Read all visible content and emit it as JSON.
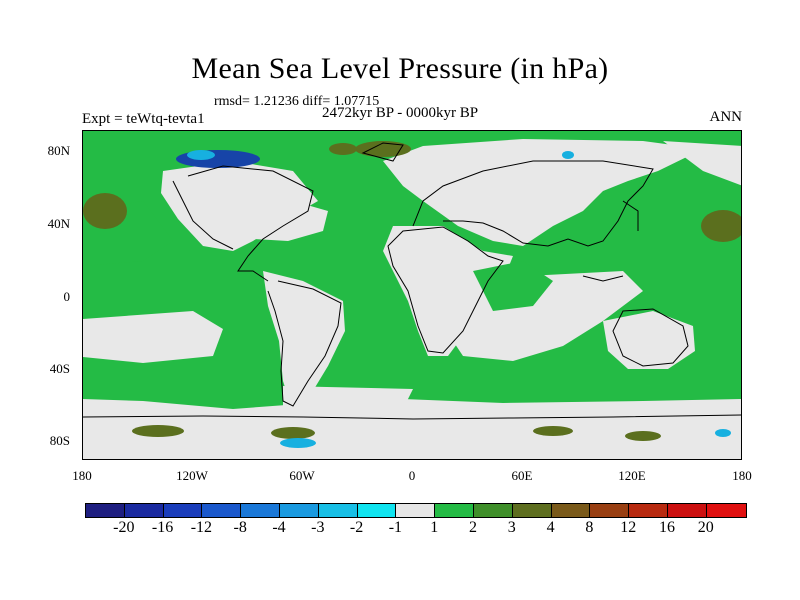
{
  "header": {
    "title": "Mean Sea Level Pressure (in hPa)",
    "stats": "rmsd= 1.21236 diff= 1.07715",
    "experiment": "Expt = teWtq-tevta1",
    "period": "2472kyr BP - 0000kyr BP",
    "season": "ANN"
  },
  "map": {
    "lat_labels": [
      "80N",
      "40N",
      "0",
      "40S",
      "80S"
    ],
    "lon_labels": [
      "180",
      "120W",
      "60W",
      "0",
      "60E",
      "120E",
      "180"
    ],
    "colors": {
      "ocean_bg": "#24bb45",
      "neutral": "#e8e8e8",
      "olive": "#4f7f1f",
      "brown": "#6e5a20",
      "blue_dark": "#1744a8",
      "cyan": "#17b0e0"
    }
  },
  "colorbar": {
    "labels": [
      "-20",
      "-16",
      "-12",
      "-8",
      "-4",
      "-3",
      "-2",
      "-1",
      "1",
      "2",
      "3",
      "4",
      "8",
      "12",
      "16",
      "20"
    ],
    "colors": [
      "#1e1e80",
      "#1a2aa0",
      "#1a3dbb",
      "#1a58cc",
      "#1a78d8",
      "#1a9ae0",
      "#18bfe6",
      "#10e4f0",
      "#e6e6e6",
      "#24bb45",
      "#3f8f2a",
      "#5e6e1f",
      "#7a5a1a",
      "#993f12",
      "#b82a10",
      "#cc1010",
      "#e01010"
    ]
  }
}
